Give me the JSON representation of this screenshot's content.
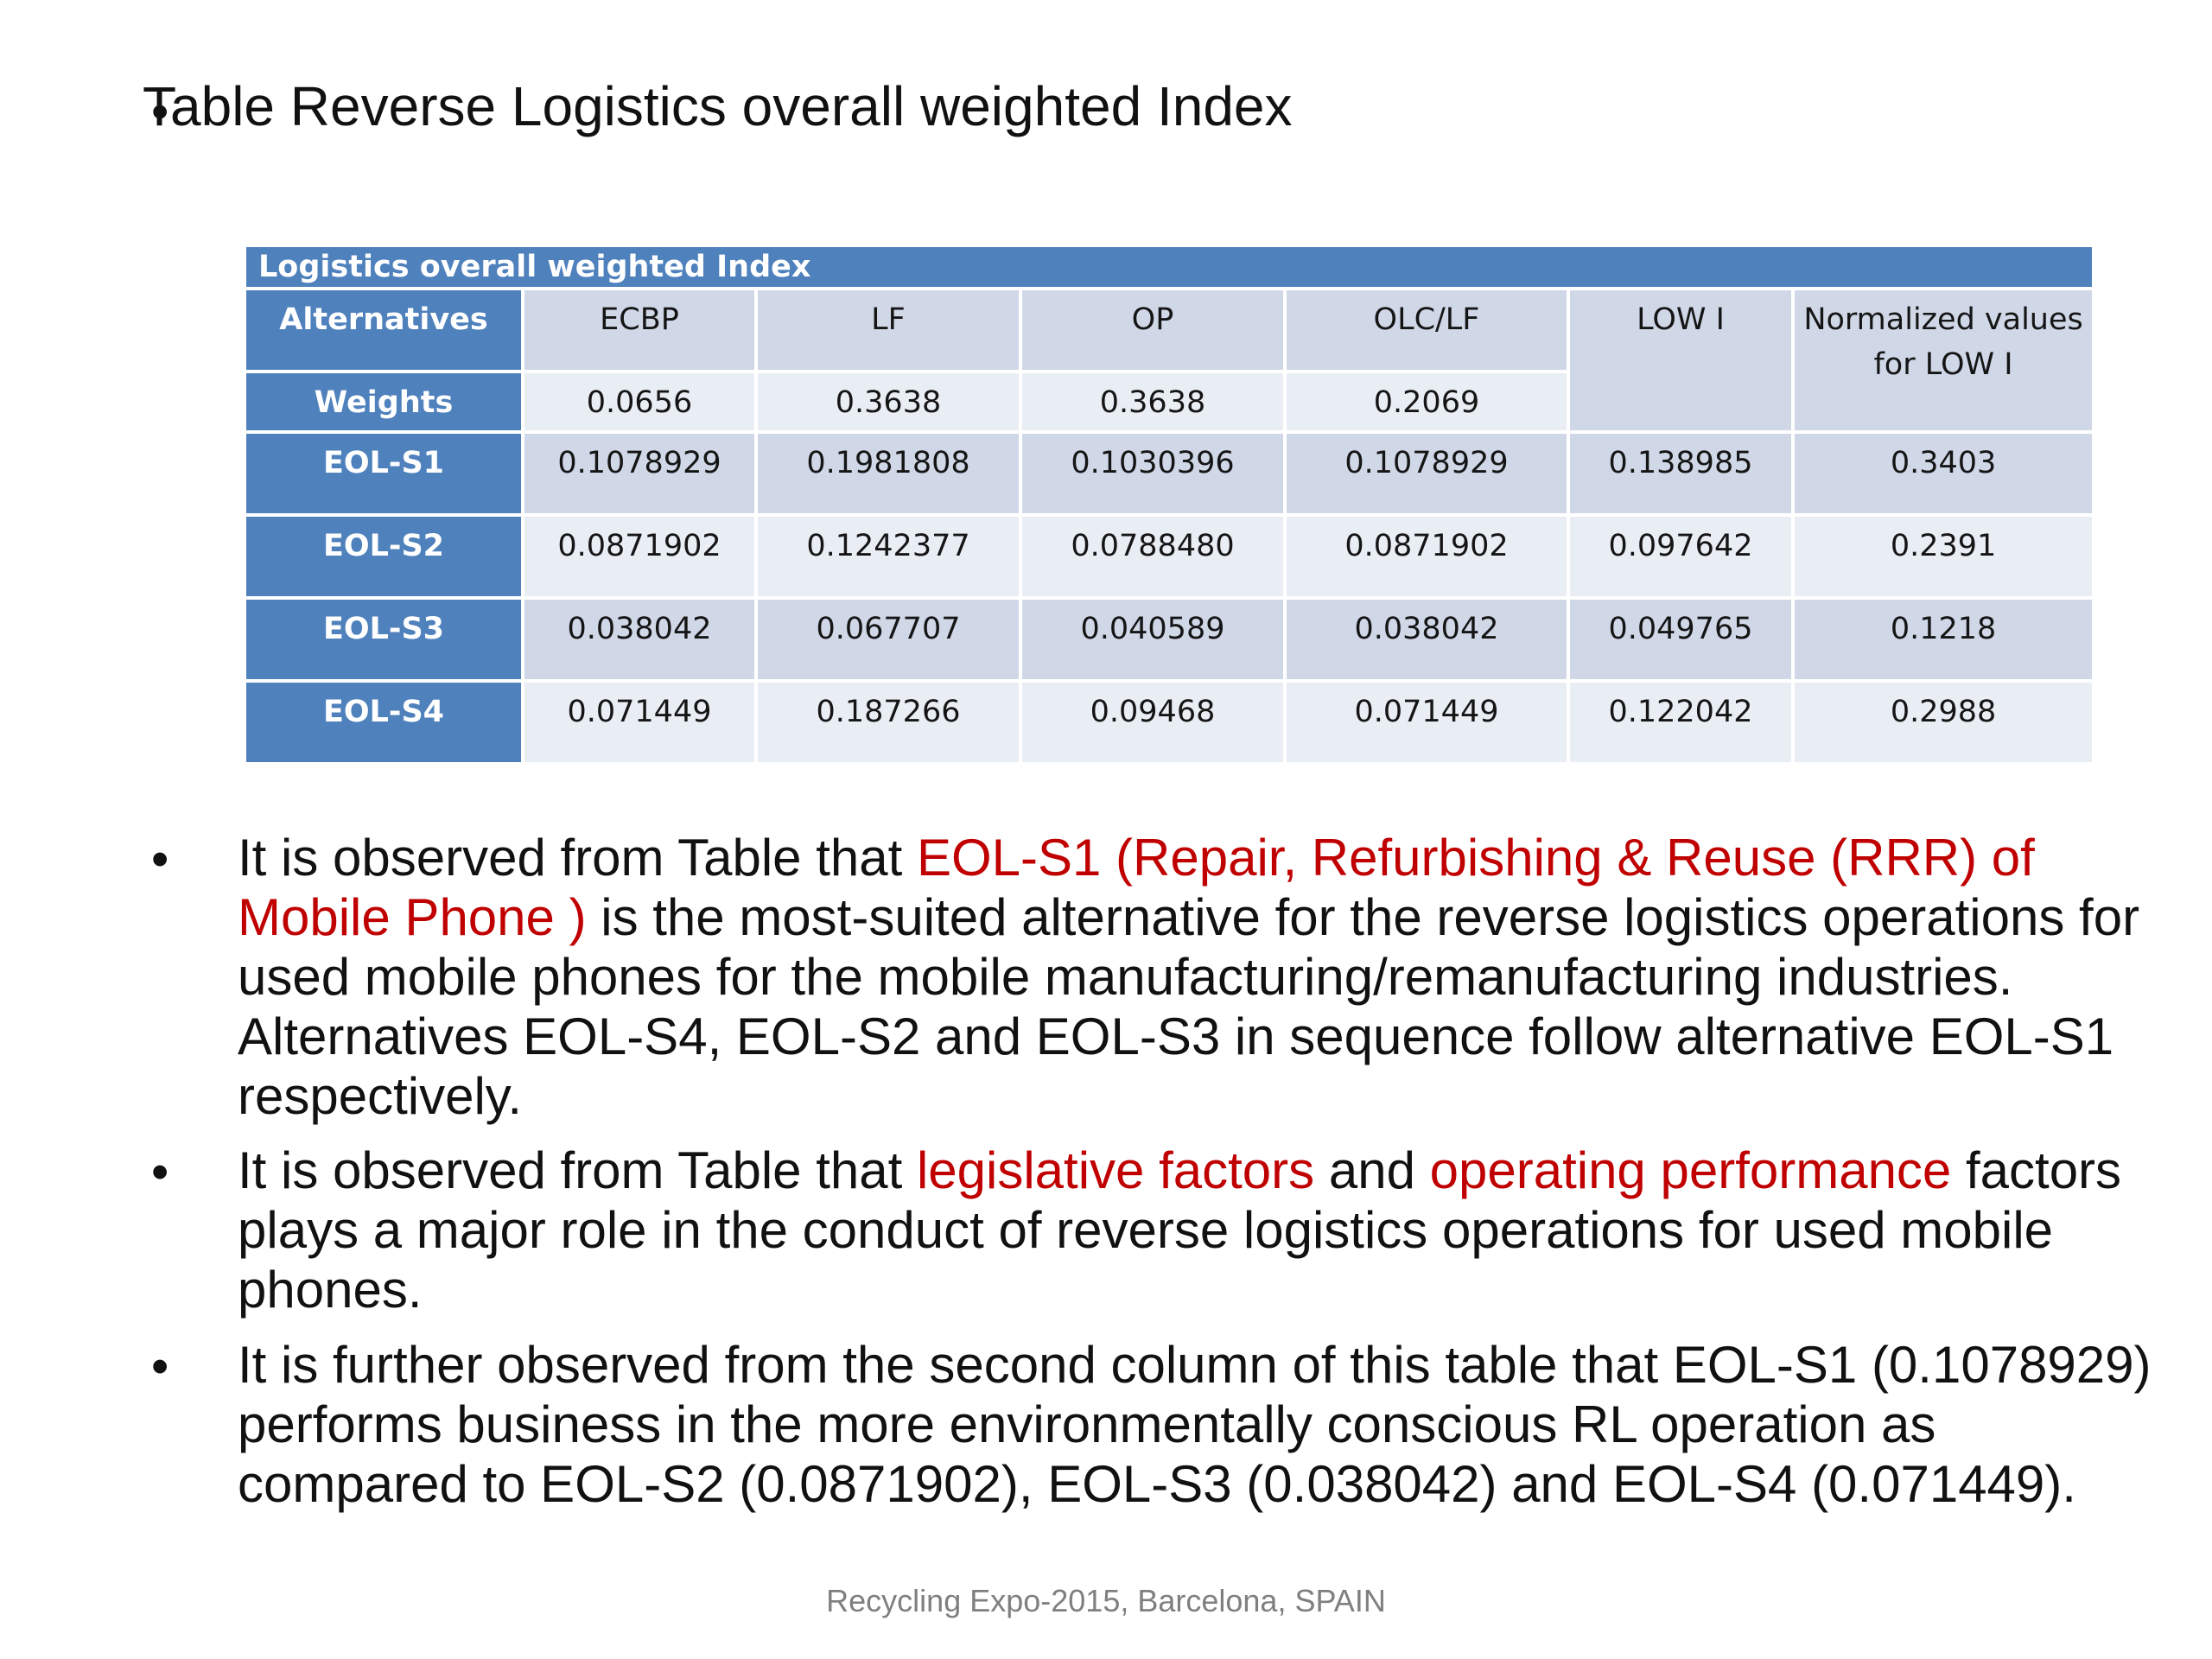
{
  "title": "Table  Reverse Logistics overall weighted Index",
  "table": {
    "caption": "Logistics overall weighted Index",
    "header": [
      "Alternatives",
      "ECBP",
      "LF",
      "OP",
      "OLC/LF",
      "LOW I",
      "Normalized values for LOW I"
    ],
    "weights": {
      "label": "Weights",
      "values": [
        "0.0656",
        "0.3638",
        "0.3638",
        "0.2069"
      ]
    },
    "rows": [
      {
        "name": "EOL-S1",
        "values": [
          "0.1078929",
          "0.1981808",
          "0.1030396",
          "0.1078929",
          "0.138985",
          "0.3403"
        ]
      },
      {
        "name": "EOL-S2",
        "values": [
          "0.0871902",
          "0.1242377",
          "0.0788480",
          "0.0871902",
          "0.097642",
          "0.2391"
        ]
      },
      {
        "name": "EOL-S3",
        "values": [
          "0.038042",
          "0.067707",
          "0.040589",
          "0.038042",
          "0.049765",
          "0.1218"
        ]
      },
      {
        "name": "EOL-S4",
        "values": [
          "0.071449",
          "0.187266",
          "0.09468",
          "0.071449",
          "0.122042",
          "0.2988"
        ]
      }
    ]
  },
  "bullets": [
    {
      "p1": "It is observed from Table  that ",
      "h1": "EOL-S1 (Repair, Refurbishing & Reuse (RRR) of Mobile Phone )",
      "p2": " is the most-suited alternative for the reverse logistics operations for used mobile phones for the mobile manufacturing/remanufacturing industries. Alternatives EOL-S4, EOL-S2 and EOL-S3 in sequence follow alternative EOL-S1 respectively."
    },
    {
      "p1": "It is observed from Table  that ",
      "h1": "legislative factors",
      "p2": " and ",
      "h2": "operating performance",
      "p3": " factors plays a major role in the conduct of reverse logistics operations for used mobile phones."
    },
    {
      "p1": "It is further observed from the second column of this table that EOL-S1 (0.1078929) performs business in the more environmentally conscious RL operation as compared to EOL-S2 (0.0871902), EOL-S3 (0.038042) and EOL-S4 (0.071449)."
    }
  ],
  "footer": "Recycling Expo-2015, Barcelona, SPAIN",
  "colors": {
    "table_header": "#4f81bd",
    "band_dark": "#d0d8e8",
    "band_light": "#e9edf4",
    "highlight": "#c00000",
    "footer": "#7f7f7f"
  }
}
